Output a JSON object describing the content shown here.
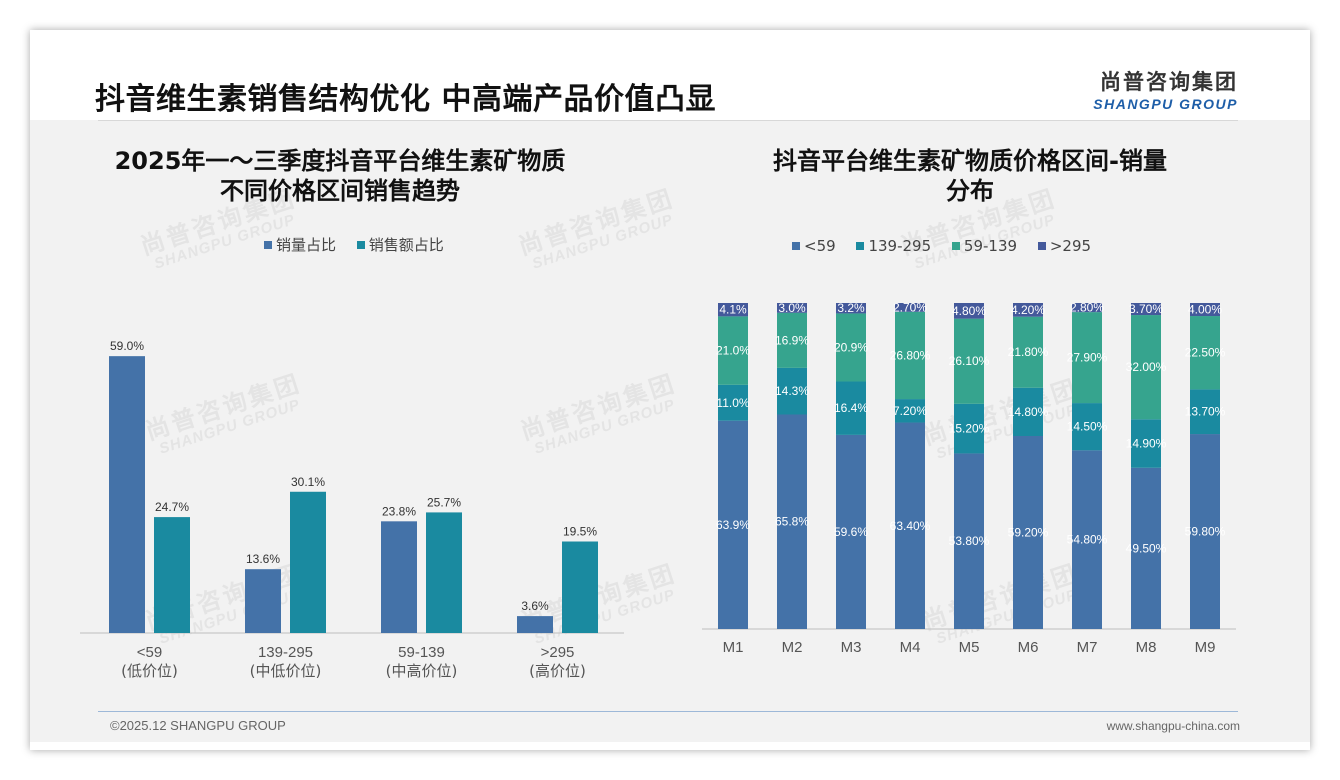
{
  "header": {
    "title": "抖音维生素销售结构优化 中高端产品价值凸显",
    "logo_cn": "尚普咨询集团",
    "logo_en": "SHANGPU GROUP"
  },
  "footer": {
    "copyright": "©2025.12 SHANGPU GROUP",
    "website": "www.shangpu-china.com"
  },
  "watermark": {
    "cn": "尚普咨询集团",
    "en": "SHANGPU GROUP"
  },
  "colors": {
    "dark_blue": "#4472a8",
    "teal": "#1a8aa0",
    "green": "#36a48e",
    "navy": "#44599b"
  },
  "chart_data": [
    {
      "type": "bar",
      "title_line1": "2025年一～三季度抖音平台维生素矿物质",
      "title_line2": "不同价格区间销售趋势",
      "categories": [
        "<59",
        "139-295",
        "59-139",
        ">295"
      ],
      "category_sublabels": [
        "(低价位)",
        "(中低价位)",
        "(中高价位)",
        "(高价位)"
      ],
      "series": [
        {
          "name": "销量占比",
          "values": [
            59.0,
            13.6,
            23.8,
            3.6
          ],
          "labels": [
            "59.0%",
            "13.6%",
            "23.8%",
            "3.6%"
          ]
        },
        {
          "name": "销售额占比",
          "values": [
            24.7,
            30.1,
            25.7,
            19.5
          ],
          "labels": [
            "24.7%",
            "30.1%",
            "25.7%",
            "19.5%"
          ]
        }
      ],
      "ylim": [
        0,
        65
      ]
    },
    {
      "type": "bar",
      "stacked": true,
      "title_line1": "抖音平台维生素矿物质价格区间-销量",
      "title_line2": "分布",
      "categories": [
        "M1",
        "M2",
        "M3",
        "M4",
        "M5",
        "M6",
        "M7",
        "M8",
        "M9"
      ],
      "series": [
        {
          "name": "<59",
          "values": [
            63.9,
            65.8,
            59.6,
            63.4,
            53.8,
            59.2,
            54.8,
            49.5,
            59.8
          ],
          "labels": [
            "63.9%",
            "65.8%",
            "59.6%",
            "63.40%",
            "53.80%",
            "59.20%",
            "54.80%",
            "49.50%",
            "59.80%"
          ]
        },
        {
          "name": "139-295",
          "values": [
            11.0,
            14.3,
            16.4,
            7.2,
            15.2,
            14.8,
            14.5,
            14.9,
            13.7
          ],
          "labels": [
            "11.0%",
            "14.3%",
            "16.4%",
            "7.20%",
            "15.20%",
            "14.80%",
            "14.50%",
            "14.90%",
            "13.70%"
          ]
        },
        {
          "name": "59-139",
          "values": [
            21.0,
            16.9,
            20.9,
            26.8,
            26.1,
            21.8,
            27.9,
            32.0,
            22.5
          ],
          "labels": [
            "21.0%",
            "16.9%",
            "20.9%",
            "26.80%",
            "26.10%",
            "21.80%",
            "27.90%",
            "32.00%",
            "22.50%"
          ]
        },
        {
          "name": ">295",
          "values": [
            4.1,
            3.0,
            3.2,
            2.7,
            4.8,
            4.2,
            2.8,
            3.7,
            4.0
          ],
          "labels": [
            "4.1%",
            "3.0%",
            "3.2%",
            "2.70%",
            "4.80%",
            "4.20%",
            "2.80%",
            "3.70%",
            "4.00%"
          ]
        }
      ],
      "ylim": [
        0,
        100
      ]
    }
  ]
}
